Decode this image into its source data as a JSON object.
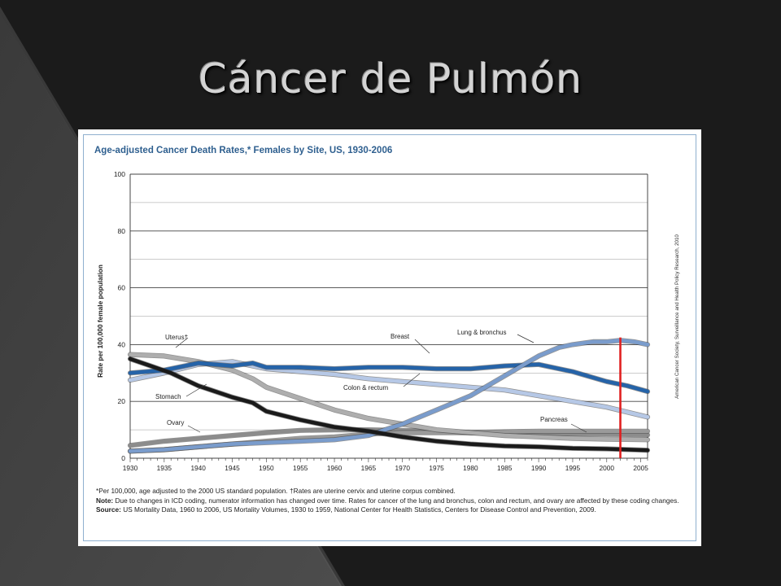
{
  "slide": {
    "title": "Cáncer de Pulmón"
  },
  "figure": {
    "source_credit": "American Cancer Society, Surveillance and Health Policy Research, 2010",
    "footnote_star": "*Per 100,000, age adjusted to the 2000 US standard population. †Rates are uterine cervix and uterine corpus combined.",
    "note_label": "Note:",
    "note_text": "Due to changes in ICD coding, numerator information has changed over time. Rates for cancer of the lung and bronchus, colon and rectum, and ovary are affected by these coding changes.",
    "source_label": "Source:",
    "source_text": "US Mortality Data, 1960 to 2006, US Mortality Volumes, 1930 to 1959, National Center for Health Statistics, Centers for Disease Control and Prevention, 2009."
  },
  "colors": {
    "background": "#1e1e1e",
    "title": "#d4d4d4",
    "chart_title": "#2e5f8f",
    "highlight_marker": "#e02020"
  },
  "chart_data": {
    "type": "line",
    "title": "Age-adjusted Cancer Death Rates,* Females by Site, US, 1930-2006",
    "xlabel": "",
    "ylabel": "Rate per 100,000 female population",
    "xlim": [
      1930,
      2006
    ],
    "ylim": [
      0,
      100
    ],
    "x_ticks": [
      1930,
      1935,
      1940,
      1945,
      1950,
      1955,
      1960,
      1965,
      1970,
      1975,
      1980,
      1985,
      1990,
      1995,
      2000,
      2005
    ],
    "y_ticks": [
      0,
      20,
      40,
      60,
      80,
      100
    ],
    "grid": true,
    "highlight_year": 2002,
    "series": [
      {
        "name": "Uterus†",
        "color": "#aeaeae",
        "points": [
          [
            1930,
            36.5
          ],
          [
            1935,
            36
          ],
          [
            1940,
            34
          ],
          [
            1945,
            31
          ],
          [
            1948,
            28
          ],
          [
            1950,
            25
          ],
          [
            1955,
            21
          ],
          [
            1960,
            17
          ],
          [
            1965,
            14
          ],
          [
            1970,
            12
          ],
          [
            1975,
            10
          ],
          [
            1980,
            9
          ],
          [
            1985,
            8
          ],
          [
            1990,
            7.5
          ],
          [
            1995,
            7
          ],
          [
            2000,
            6.7
          ],
          [
            2006,
            6.5
          ]
        ]
      },
      {
        "name": "Stomach",
        "color": "#1a1a1a",
        "points": [
          [
            1930,
            35
          ],
          [
            1933,
            32.5
          ],
          [
            1936,
            30
          ],
          [
            1940,
            25.5
          ],
          [
            1945,
            21.5
          ],
          [
            1948,
            19.5
          ],
          [
            1950,
            16.5
          ],
          [
            1955,
            13.5
          ],
          [
            1960,
            11
          ],
          [
            1965,
            9.5
          ],
          [
            1970,
            7.5
          ],
          [
            1975,
            6
          ],
          [
            1980,
            5
          ],
          [
            1985,
            4.3
          ],
          [
            1990,
            4
          ],
          [
            1995,
            3.5
          ],
          [
            2000,
            3.3
          ],
          [
            2006,
            2.8
          ]
        ]
      },
      {
        "name": "Breast",
        "color": "#2563a8",
        "points": [
          [
            1930,
            30
          ],
          [
            1935,
            31
          ],
          [
            1940,
            33.5
          ],
          [
            1945,
            32.5
          ],
          [
            1948,
            33.5
          ],
          [
            1950,
            32
          ],
          [
            1955,
            32
          ],
          [
            1960,
            31.5
          ],
          [
            1965,
            32
          ],
          [
            1970,
            32
          ],
          [
            1975,
            31.5
          ],
          [
            1980,
            31.5
          ],
          [
            1985,
            32.5
          ],
          [
            1990,
            33
          ],
          [
            1993,
            31.5
          ],
          [
            1995,
            30.5
          ],
          [
            2000,
            27
          ],
          [
            2003,
            25.5
          ],
          [
            2006,
            23.5
          ]
        ]
      },
      {
        "name": "Colon & rectum",
        "color": "#b6c8e6",
        "points": [
          [
            1930,
            27.5
          ],
          [
            1935,
            30
          ],
          [
            1940,
            33
          ],
          [
            1945,
            34
          ],
          [
            1948,
            32.5
          ],
          [
            1950,
            31.5
          ],
          [
            1955,
            30.5
          ],
          [
            1960,
            29.5
          ],
          [
            1965,
            28
          ],
          [
            1970,
            27
          ],
          [
            1975,
            26
          ],
          [
            1980,
            25
          ],
          [
            1985,
            24
          ],
          [
            1990,
            22
          ],
          [
            1995,
            20
          ],
          [
            2000,
            18
          ],
          [
            2006,
            14.5
          ]
        ]
      },
      {
        "name": "Lung & bronchus",
        "color": "#7a9ccc",
        "points": [
          [
            1930,
            2.5
          ],
          [
            1935,
            3
          ],
          [
            1940,
            4
          ],
          [
            1945,
            5
          ],
          [
            1950,
            5.5
          ],
          [
            1955,
            6
          ],
          [
            1960,
            6.5
          ],
          [
            1965,
            8
          ],
          [
            1968,
            10.5
          ],
          [
            1970,
            12
          ],
          [
            1975,
            17
          ],
          [
            1980,
            22
          ],
          [
            1985,
            29
          ],
          [
            1990,
            36
          ],
          [
            1993,
            39
          ],
          [
            1995,
            40
          ],
          [
            1998,
            41
          ],
          [
            2000,
            41
          ],
          [
            2002,
            41.5
          ],
          [
            2004,
            41
          ],
          [
            2006,
            40
          ]
        ]
      },
      {
        "name": "Ovary",
        "color": "#8c8c8c",
        "points": [
          [
            1930,
            4.5
          ],
          [
            1935,
            6
          ],
          [
            1940,
            7
          ],
          [
            1945,
            8
          ],
          [
            1950,
            9
          ],
          [
            1955,
            9.8
          ],
          [
            1960,
            10
          ],
          [
            1965,
            10
          ],
          [
            1970,
            9.8
          ],
          [
            1975,
            9.5
          ],
          [
            1980,
            9
          ],
          [
            1985,
            8.8
          ],
          [
            1990,
            8.6
          ],
          [
            1995,
            8.6
          ],
          [
            2000,
            8.5
          ],
          [
            2006,
            8.2
          ]
        ]
      },
      {
        "name": "Pancreas",
        "color": "#9a9a9a",
        "points": [
          [
            1930,
            2.5
          ],
          [
            1935,
            3
          ],
          [
            1940,
            4
          ],
          [
            1945,
            5
          ],
          [
            1950,
            6
          ],
          [
            1955,
            7
          ],
          [
            1960,
            7.5
          ],
          [
            1965,
            8.5
          ],
          [
            1970,
            9
          ],
          [
            1975,
            9
          ],
          [
            1980,
            9
          ],
          [
            1985,
            9.3
          ],
          [
            1990,
            9.5
          ],
          [
            1995,
            9.5
          ],
          [
            2000,
            9.5
          ],
          [
            2006,
            9.5
          ]
        ]
      }
    ],
    "annotations": [
      {
        "text": "Uterus†",
        "series": "Uterus†"
      },
      {
        "text": "Stomach",
        "series": "Stomach"
      },
      {
        "text": "Breast",
        "series": "Breast"
      },
      {
        "text": "Lung & bronchus",
        "series": "Lung & bronchus"
      },
      {
        "text": "Colon & rectum",
        "series": "Colon & rectum"
      },
      {
        "text": "Ovary",
        "series": "Ovary"
      },
      {
        "text": "Pancreas",
        "series": "Pancreas"
      }
    ]
  }
}
